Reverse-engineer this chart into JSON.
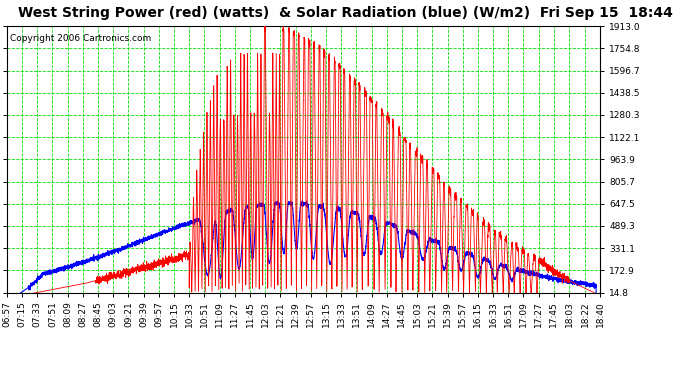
{
  "title": "West String Power (red) (watts)  & Solar Radiation (blue) (W/m2)  Fri Sep 15  18:44",
  "copyright": "Copyright 2006 Cartronics.com",
  "background_color": "#ffffff",
  "plot_bg_color": "#ffffff",
  "grid_color": "#00dd00",
  "y_min": 14.8,
  "y_max": 1913.0,
  "y_ticks": [
    14.8,
    172.9,
    331.1,
    489.3,
    647.5,
    805.7,
    963.9,
    1122.1,
    1280.3,
    1438.5,
    1596.7,
    1754.8,
    1913.0
  ],
  "x_labels": [
    "06:57",
    "07:15",
    "07:33",
    "07:51",
    "08:09",
    "08:27",
    "08:45",
    "09:03",
    "09:21",
    "09:39",
    "09:57",
    "10:15",
    "10:33",
    "10:51",
    "11:09",
    "11:27",
    "11:45",
    "12:03",
    "12:21",
    "12:39",
    "12:57",
    "13:15",
    "13:33",
    "13:51",
    "14:09",
    "14:27",
    "14:45",
    "15:03",
    "15:21",
    "15:39",
    "15:57",
    "16:15",
    "16:33",
    "16:51",
    "17:09",
    "17:27",
    "17:45",
    "18:03",
    "18:22",
    "18:40"
  ],
  "line_color_red": "#ff0000",
  "line_color_blue": "#0000ff",
  "title_fontsize": 10,
  "tick_fontsize": 6.5,
  "copyright_fontsize": 6.5
}
